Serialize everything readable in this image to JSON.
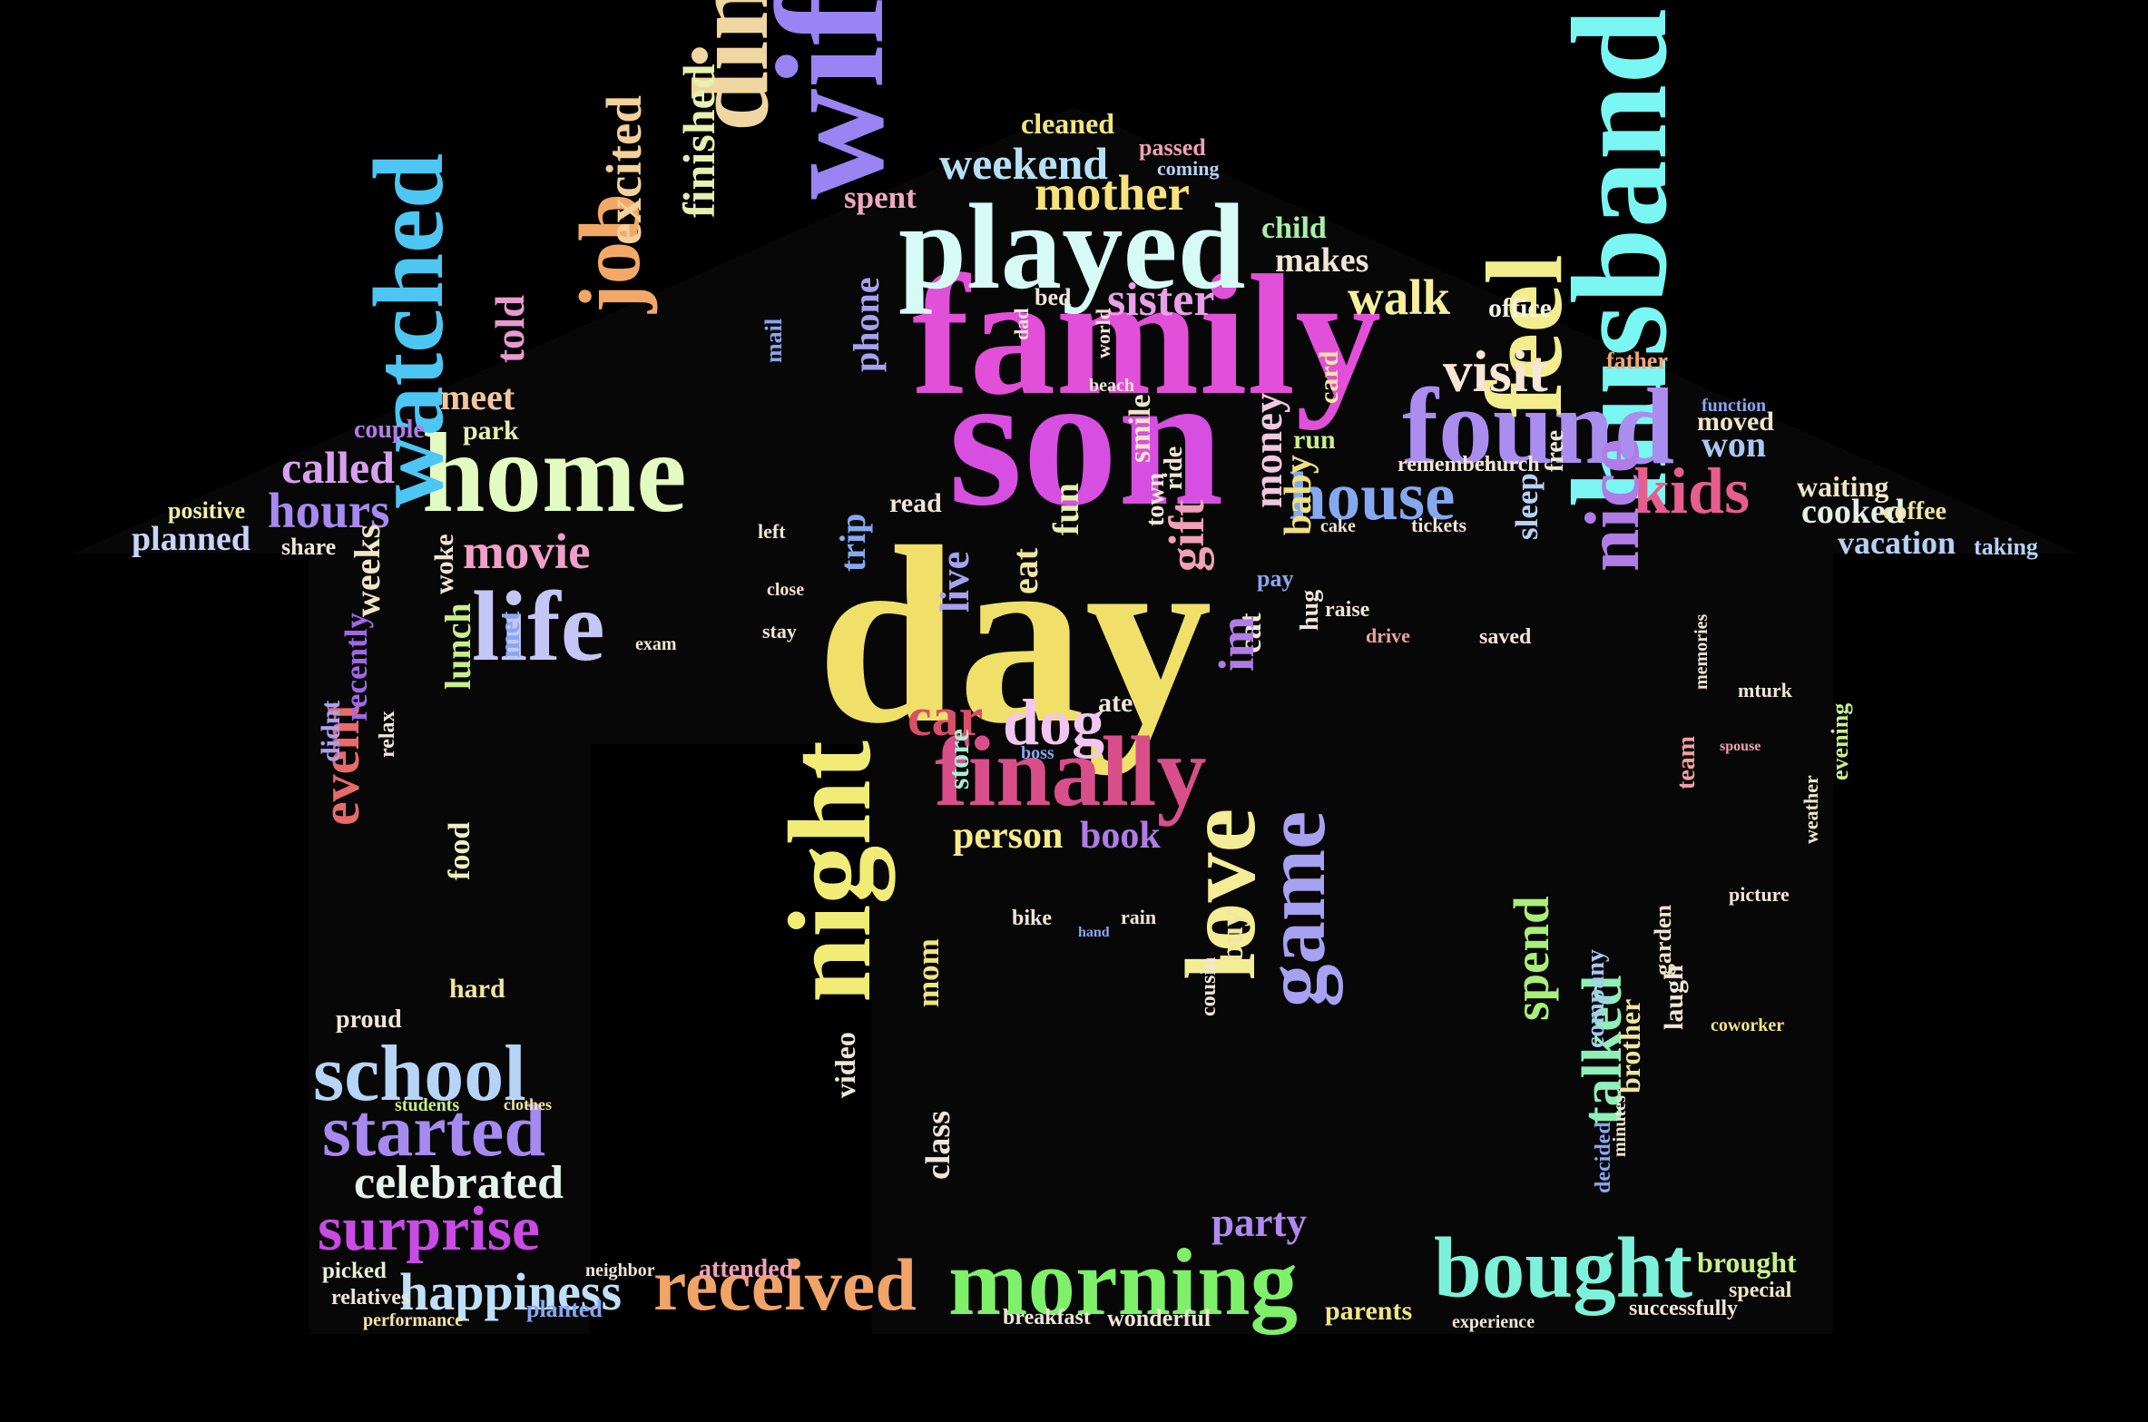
{
  "title": "",
  "words": [
    {
      "text": "day",
      "color": "#f0e06a"
    },
    {
      "text": "son",
      "color": "#d64fe0"
    },
    {
      "text": "family",
      "color": "#e24fd8"
    },
    {
      "text": "wife",
      "color": "#9a83f2"
    },
    {
      "text": "played",
      "color": "#d6fbf5"
    },
    {
      "text": "home",
      "color": "#e3fbc0"
    },
    {
      "text": "husband",
      "color": "#7af6f3"
    },
    {
      "text": "watched",
      "color": "#4dc6f4"
    },
    {
      "text": "found",
      "color": "#a98ef0"
    },
    {
      "text": "morning",
      "color": "#7ef06a"
    },
    {
      "text": "finally",
      "color": "#d84f8a"
    },
    {
      "text": "received",
      "color": "#f1a468"
    },
    {
      "text": "bought",
      "color": "#7ef2d8"
    },
    {
      "text": "night",
      "color": "#f0ec76"
    },
    {
      "text": "dinner",
      "color": "#f0d6a0"
    },
    {
      "text": "love",
      "color": "#f3ed96"
    },
    {
      "text": "school",
      "color": "#b6d4f6"
    },
    {
      "text": "started",
      "color": "#a58af0"
    },
    {
      "text": "life",
      "color": "#c6c6f6"
    },
    {
      "text": "feel",
      "color": "#f2ee8e"
    },
    {
      "text": "house",
      "color": "#86a8f0"
    },
    {
      "text": "kids",
      "color": "#e65e8e"
    },
    {
      "text": "surprise",
      "color": "#c94be6"
    },
    {
      "text": "happiness",
      "color": "#bfe0f8"
    },
    {
      "text": "celebrated",
      "color": "#e6f4ea"
    },
    {
      "text": "job",
      "color": "#f4a868"
    },
    {
      "text": "visit",
      "color": "#f6e6d6"
    },
    {
      "text": "game",
      "color": "#a8a0f0"
    },
    {
      "text": "nice",
      "color": "#b07ce6"
    },
    {
      "text": "dog",
      "color": "#f2c6f0"
    },
    {
      "text": "car",
      "color": "#d84f6a"
    },
    {
      "text": "mother",
      "color": "#f6e27c"
    },
    {
      "text": "weekend",
      "color": "#b6e0f4"
    },
    {
      "text": "sister",
      "color": "#e8a0e8"
    },
    {
      "text": "walk",
      "color": "#f6f09e"
    },
    {
      "text": "movie",
      "color": "#f0a0c8"
    },
    {
      "text": "hours",
      "color": "#a68af0"
    },
    {
      "text": "called",
      "color": "#d8a0f0"
    },
    {
      "text": "meet",
      "color": "#f0c6a0"
    },
    {
      "text": "told",
      "color": "#e89ad0"
    },
    {
      "text": "excited",
      "color": "#f4d09a"
    },
    {
      "text": "finished",
      "color": "#e6f0b0"
    },
    {
      "text": "event",
      "color": "#e86a6a"
    },
    {
      "text": "talked",
      "color": "#8ef0b8"
    },
    {
      "text": "spend",
      "color": "#a8f078"
    },
    {
      "text": "party",
      "color": "#b08af0"
    },
    {
      "text": "person",
      "color": "#f6ea8a"
    },
    {
      "text": "book",
      "color": "#b07ce6"
    },
    {
      "text": "won",
      "color": "#a8c8f4"
    },
    {
      "text": "money",
      "color": "#f0c8e0"
    },
    {
      "text": "fun",
      "color": "#e6f0b0"
    },
    {
      "text": "lunch",
      "color": "#c8f08a"
    },
    {
      "text": "phone",
      "color": "#a8a0f0"
    },
    {
      "text": "baby",
      "color": "#f0e080"
    },
    {
      "text": "cooked",
      "color": "#e6f0e6"
    },
    {
      "text": "vacation",
      "color": "#b6d0f6"
    },
    {
      "text": "waiting",
      "color": "#f0e6c6"
    },
    {
      "text": "moved",
      "color": "#f0e6c6"
    },
    {
      "text": "makes",
      "color": "#f0e6d6"
    },
    {
      "text": "spent",
      "color": "#f0a8c0"
    },
    {
      "text": "child",
      "color": "#a8f0a8"
    },
    {
      "text": "office",
      "color": "#f6f6e6"
    },
    {
      "text": "father",
      "color": "#f0a878"
    },
    {
      "text": "planned",
      "color": "#c8d4f8"
    },
    {
      "text": "positive",
      "color": "#f0f0a8"
    },
    {
      "text": "share",
      "color": "#f0e6d6"
    },
    {
      "text": "park",
      "color": "#e6f0b0"
    },
    {
      "text": "couple",
      "color": "#b07ce6"
    },
    {
      "text": "weeks",
      "color": "#f0e6c6"
    },
    {
      "text": "recently",
      "color": "#a068e6"
    },
    {
      "text": "didnt",
      "color": "#a8a0f0"
    },
    {
      "text": "food",
      "color": "#f0f0c0"
    },
    {
      "text": "hard",
      "color": "#f0e6a0"
    },
    {
      "text": "proud",
      "color": "#f0e6d6"
    },
    {
      "text": "picked",
      "color": "#e6f0d6"
    },
    {
      "text": "relatives",
      "color": "#f0e6d6"
    },
    {
      "text": "planted",
      "color": "#86a8f0"
    },
    {
      "text": "performance",
      "color": "#f6e6a0"
    },
    {
      "text": "attended",
      "color": "#f0a0b8"
    },
    {
      "text": "class",
      "color": "#f0e6d6"
    },
    {
      "text": "mom",
      "color": "#f0e680"
    },
    {
      "text": "video",
      "color": "#f0e6d6"
    },
    {
      "text": "breakfast",
      "color": "#f0e6d6"
    },
    {
      "text": "wonderful",
      "color": "#f0e6d6"
    },
    {
      "text": "parents",
      "color": "#f0e680"
    },
    {
      "text": "experience",
      "color": "#f0e6d6"
    },
    {
      "text": "successfully",
      "color": "#f0e6d6"
    },
    {
      "text": "brought",
      "color": "#c8f08a"
    },
    {
      "text": "special",
      "color": "#f0e6c6"
    },
    {
      "text": "company",
      "color": "#a8c8f4"
    },
    {
      "text": "brother",
      "color": "#f0e6a0"
    },
    {
      "text": "laugh",
      "color": "#f0e6d6"
    },
    {
      "text": "garden",
      "color": "#f0e6c6"
    },
    {
      "text": "team",
      "color": "#f0a0a0"
    },
    {
      "text": "memories",
      "color": "#f0e6d6"
    },
    {
      "text": "picture",
      "color": "#f0e6d6"
    },
    {
      "text": "coworker",
      "color": "#f0e680"
    },
    {
      "text": "mturk",
      "color": "#f0e6d6"
    },
    {
      "text": "spouse",
      "color": "#f0a0b8"
    },
    {
      "text": "weather",
      "color": "#f0e6c6"
    },
    {
      "text": "evening",
      "color": "#c8f08a"
    },
    {
      "text": "taking",
      "color": "#b6d0f6"
    },
    {
      "text": "coffee",
      "color": "#f0e6a0"
    },
    {
      "text": "function",
      "color": "#86a8f0"
    },
    {
      "text": "remember",
      "color": "#f0e6d6"
    },
    {
      "text": "church",
      "color": "#f0e6d6"
    },
    {
      "text": "tickets",
      "color": "#f0e6d6"
    },
    {
      "text": "sleep",
      "color": "#b6d0f6"
    },
    {
      "text": "free",
      "color": "#f0e6d6"
    },
    {
      "text": "drive",
      "color": "#f0a0a0"
    },
    {
      "text": "saved",
      "color": "#f0e6d6"
    },
    {
      "text": "card",
      "color": "#f0e6a0"
    },
    {
      "text": "run",
      "color": "#c8f08a"
    },
    {
      "text": "cake",
      "color": "#f0e6d6"
    },
    {
      "text": "hug",
      "color": "#f0e6d6"
    },
    {
      "text": "raise",
      "color": "#f0e6d6"
    },
    {
      "text": "gift",
      "color": "#f0a0b8"
    },
    {
      "text": "cat",
      "color": "#f0e6d6"
    },
    {
      "text": "im",
      "color": "#b07ce6"
    },
    {
      "text": "ate",
      "color": "#f0e6d6"
    },
    {
      "text": "live",
      "color": "#a8a0f0"
    },
    {
      "text": "trip",
      "color": "#86a8f0"
    },
    {
      "text": "eat",
      "color": "#f0e6a0"
    },
    {
      "text": "read",
      "color": "#f0e6d6"
    },
    {
      "text": "store",
      "color": "#a8f0d8"
    },
    {
      "text": "smile",
      "color": "#f0e6c6"
    },
    {
      "text": "bed",
      "color": "#f0e6d6"
    },
    {
      "text": "dad",
      "color": "#f0e6d6"
    },
    {
      "text": "beach",
      "color": "#f0e6d6"
    },
    {
      "text": "mail",
      "color": "#86a8f0"
    },
    {
      "text": "cleaned",
      "color": "#f0e680"
    },
    {
      "text": "passed",
      "color": "#f0a0b8"
    },
    {
      "text": "coming",
      "color": "#b6d0f6"
    },
    {
      "text": "buy",
      "color": "#f0e6a0"
    },
    {
      "text": "cousin",
      "color": "#f0e6d6"
    },
    {
      "text": "bike",
      "color": "#f0e6d6"
    },
    {
      "text": "rain",
      "color": "#f0e6d6"
    },
    {
      "text": "hand",
      "color": "#86a8f0"
    },
    {
      "text": "boss",
      "color": "#86a8f0"
    },
    {
      "text": "ride",
      "color": "#f0e6d6"
    },
    {
      "text": "town",
      "color": "#f0e6d6"
    },
    {
      "text": "students",
      "color": "#c8f08a"
    },
    {
      "text": "clothes",
      "color": "#f0e6a0"
    },
    {
      "text": "neighbor",
      "color": "#f0e6d6"
    },
    {
      "text": "met",
      "color": "#86a8f0"
    },
    {
      "text": "woke",
      "color": "#f0e6d6"
    },
    {
      "text": "relax",
      "color": "#f0e6d6"
    },
    {
      "text": "left",
      "color": "#f0e6d6"
    },
    {
      "text": "close",
      "color": "#f0e6d6"
    },
    {
      "text": "stay",
      "color": "#f0e6d6"
    },
    {
      "text": "world",
      "color": "#f0e6d6"
    },
    {
      "text": "pay",
      "color": "#86a8f0"
    },
    {
      "text": "exam",
      "color": "#f0e6d6"
    },
    {
      "text": "minutes",
      "color": "#f0e6d6"
    },
    {
      "text": "decided",
      "color": "#86a8f0"
    }
  ]
}
